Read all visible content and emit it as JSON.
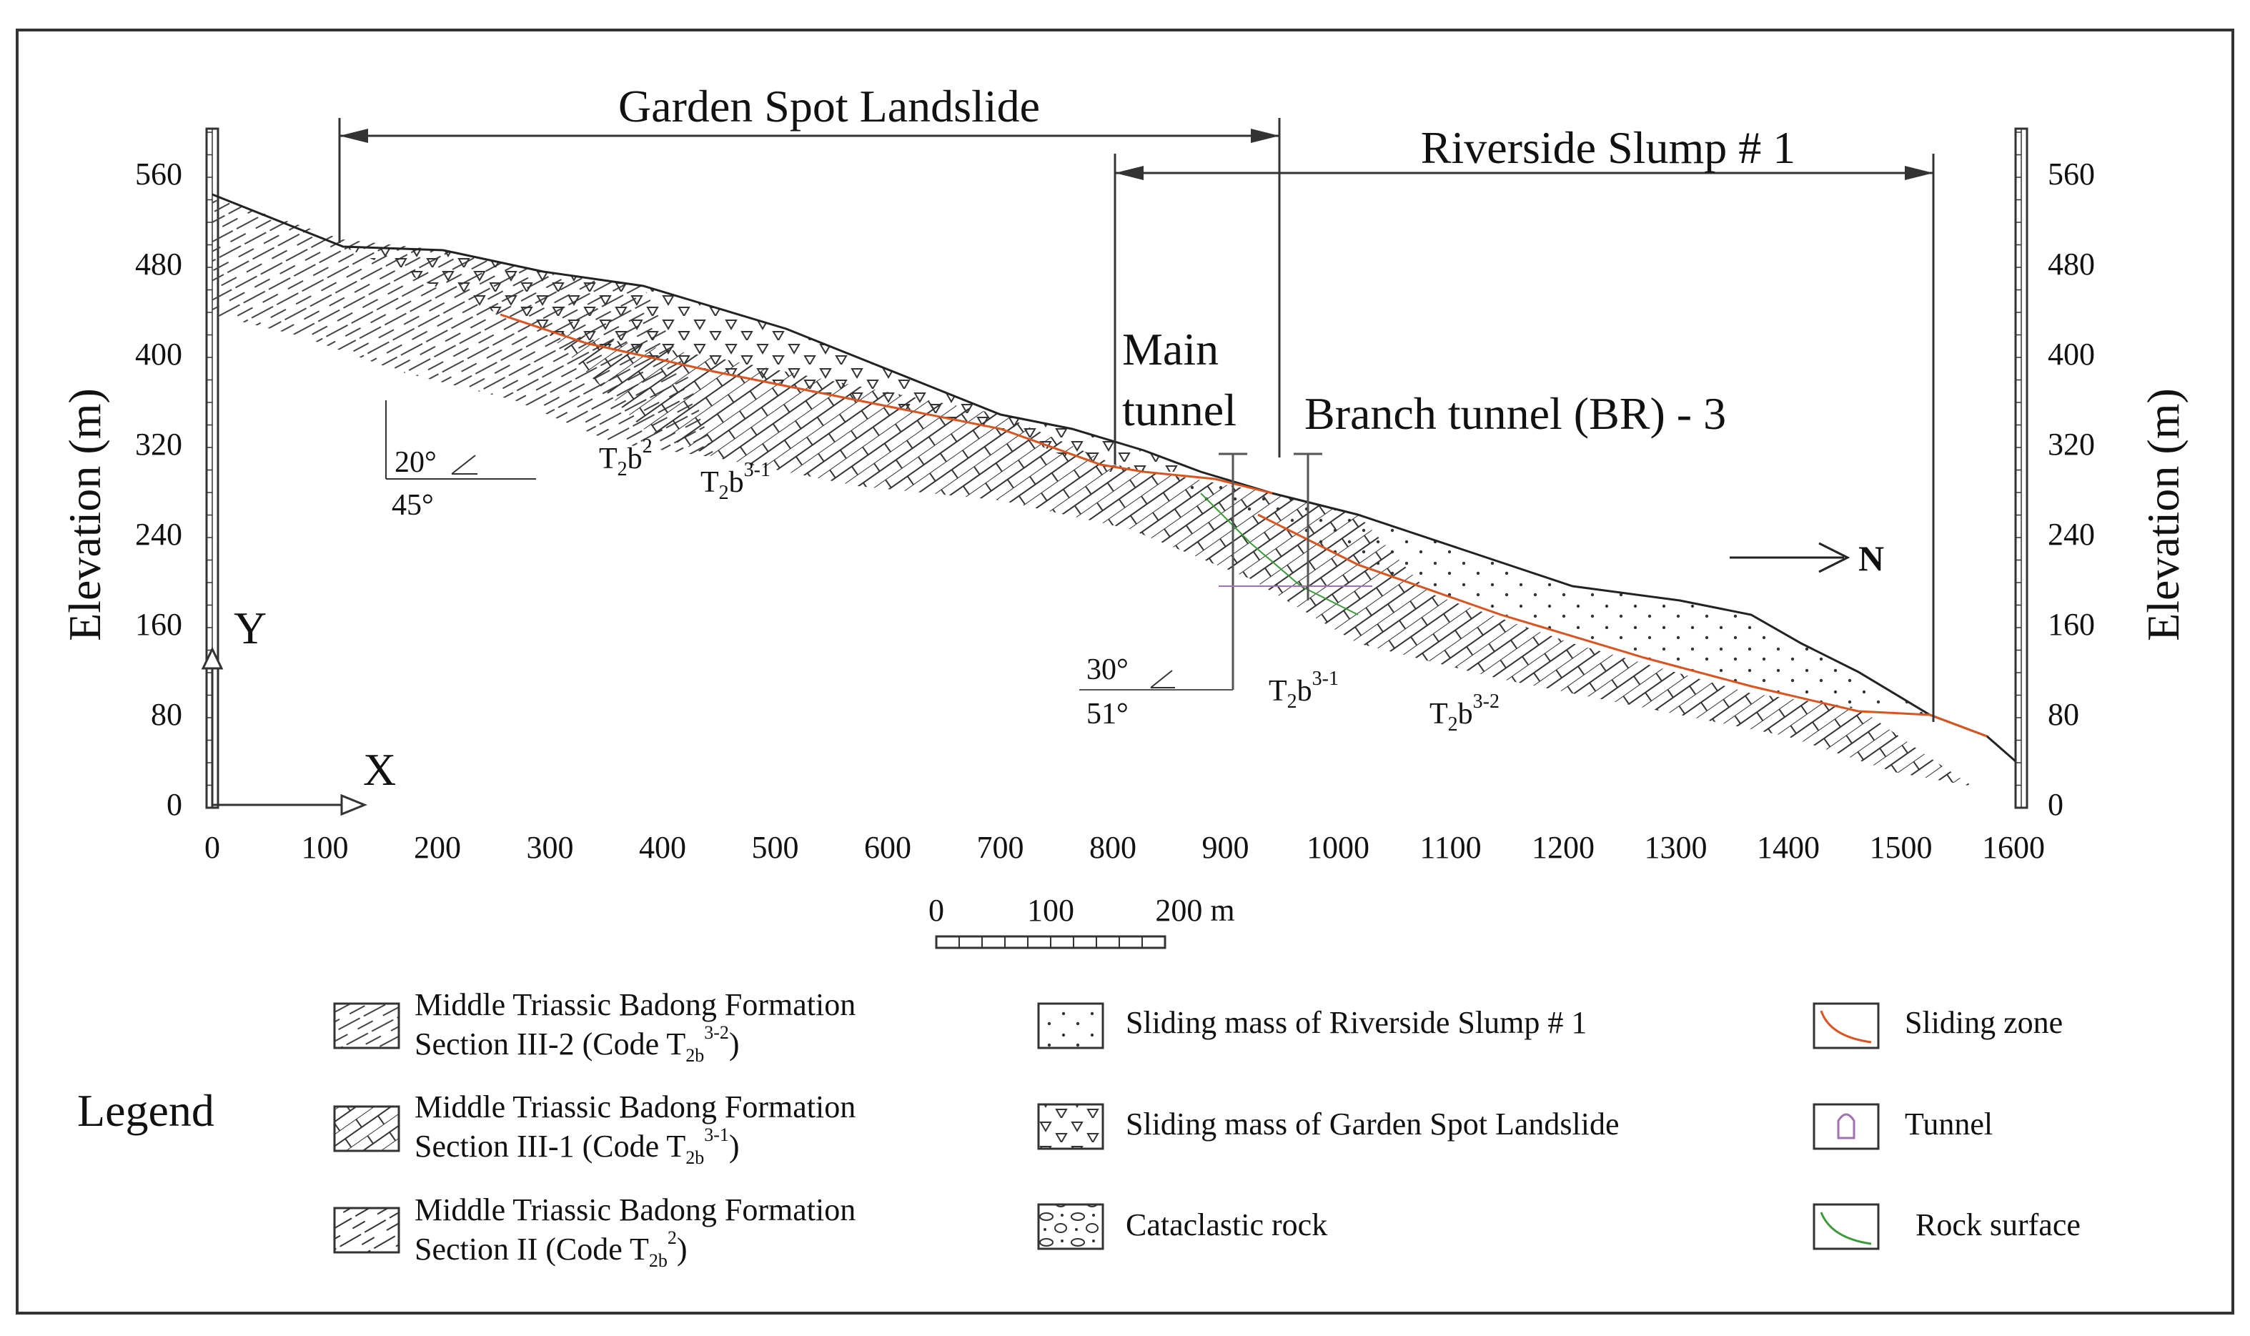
{
  "titles": {
    "garden_spot": "Garden Spot Landslide",
    "riverside": "Riverside Slump # 1"
  },
  "axes": {
    "ylabel": "Elevation (m)",
    "y_ticks": [
      "0",
      "80",
      "160",
      "240",
      "320",
      "400",
      "480",
      "560"
    ],
    "x_ticks": [
      "0",
      "100",
      "200",
      "300",
      "400",
      "500",
      "600",
      "700",
      "800",
      "900",
      "1000",
      "1100",
      "1200",
      "1300",
      "1400",
      "1500",
      "1600"
    ],
    "y_marker": "Y",
    "x_marker": "X",
    "north": "N"
  },
  "annotations": {
    "main_tunnel_1": "Main",
    "main_tunnel_2": "tunnel",
    "branch_tunnel": "Branch tunnel (BR) - 3",
    "dip1_a": "20°",
    "dip1_b": "45°",
    "dip2_a": "30°",
    "dip2_b": "51°",
    "strat": [
      {
        "base": "T",
        "sub": "2",
        "b": "b",
        "sup": "2"
      },
      {
        "base": "T",
        "sub": "2",
        "b": "b",
        "sup": "3-1"
      },
      {
        "base": "T",
        "sub": "2",
        "b": "b",
        "sup": "3-1"
      },
      {
        "base": "T",
        "sub": "2",
        "b": "b",
        "sup": "3-2"
      }
    ]
  },
  "scale": {
    "labels": [
      "0",
      "100",
      "200 m"
    ]
  },
  "legend": {
    "title": "Legend",
    "formations": [
      {
        "line1": "Middle Triassic Badong Formation",
        "line2": "Section III-2 (Code T",
        "sub": "2b",
        "sup": "3-2",
        "close": ")"
      },
      {
        "line1": "Middle Triassic Badong Formation",
        "line2": "Section III-1 (Code T",
        "sub": "2b",
        "sup": "3-1",
        "close": ")"
      },
      {
        "line1": "Middle Triassic Badong Formation",
        "line2": "Section II  (Code T",
        "sub": "2b",
        "sup": "2",
        "close": ")"
      }
    ],
    "masses": [
      "Sliding mass of Riverside Slump # 1",
      "Sliding mass of Garden Spot Landslide",
      "Cataclastic rock"
    ],
    "lines": [
      "Sliding zone",
      "Tunnel",
      "Rock surface"
    ]
  }
}
